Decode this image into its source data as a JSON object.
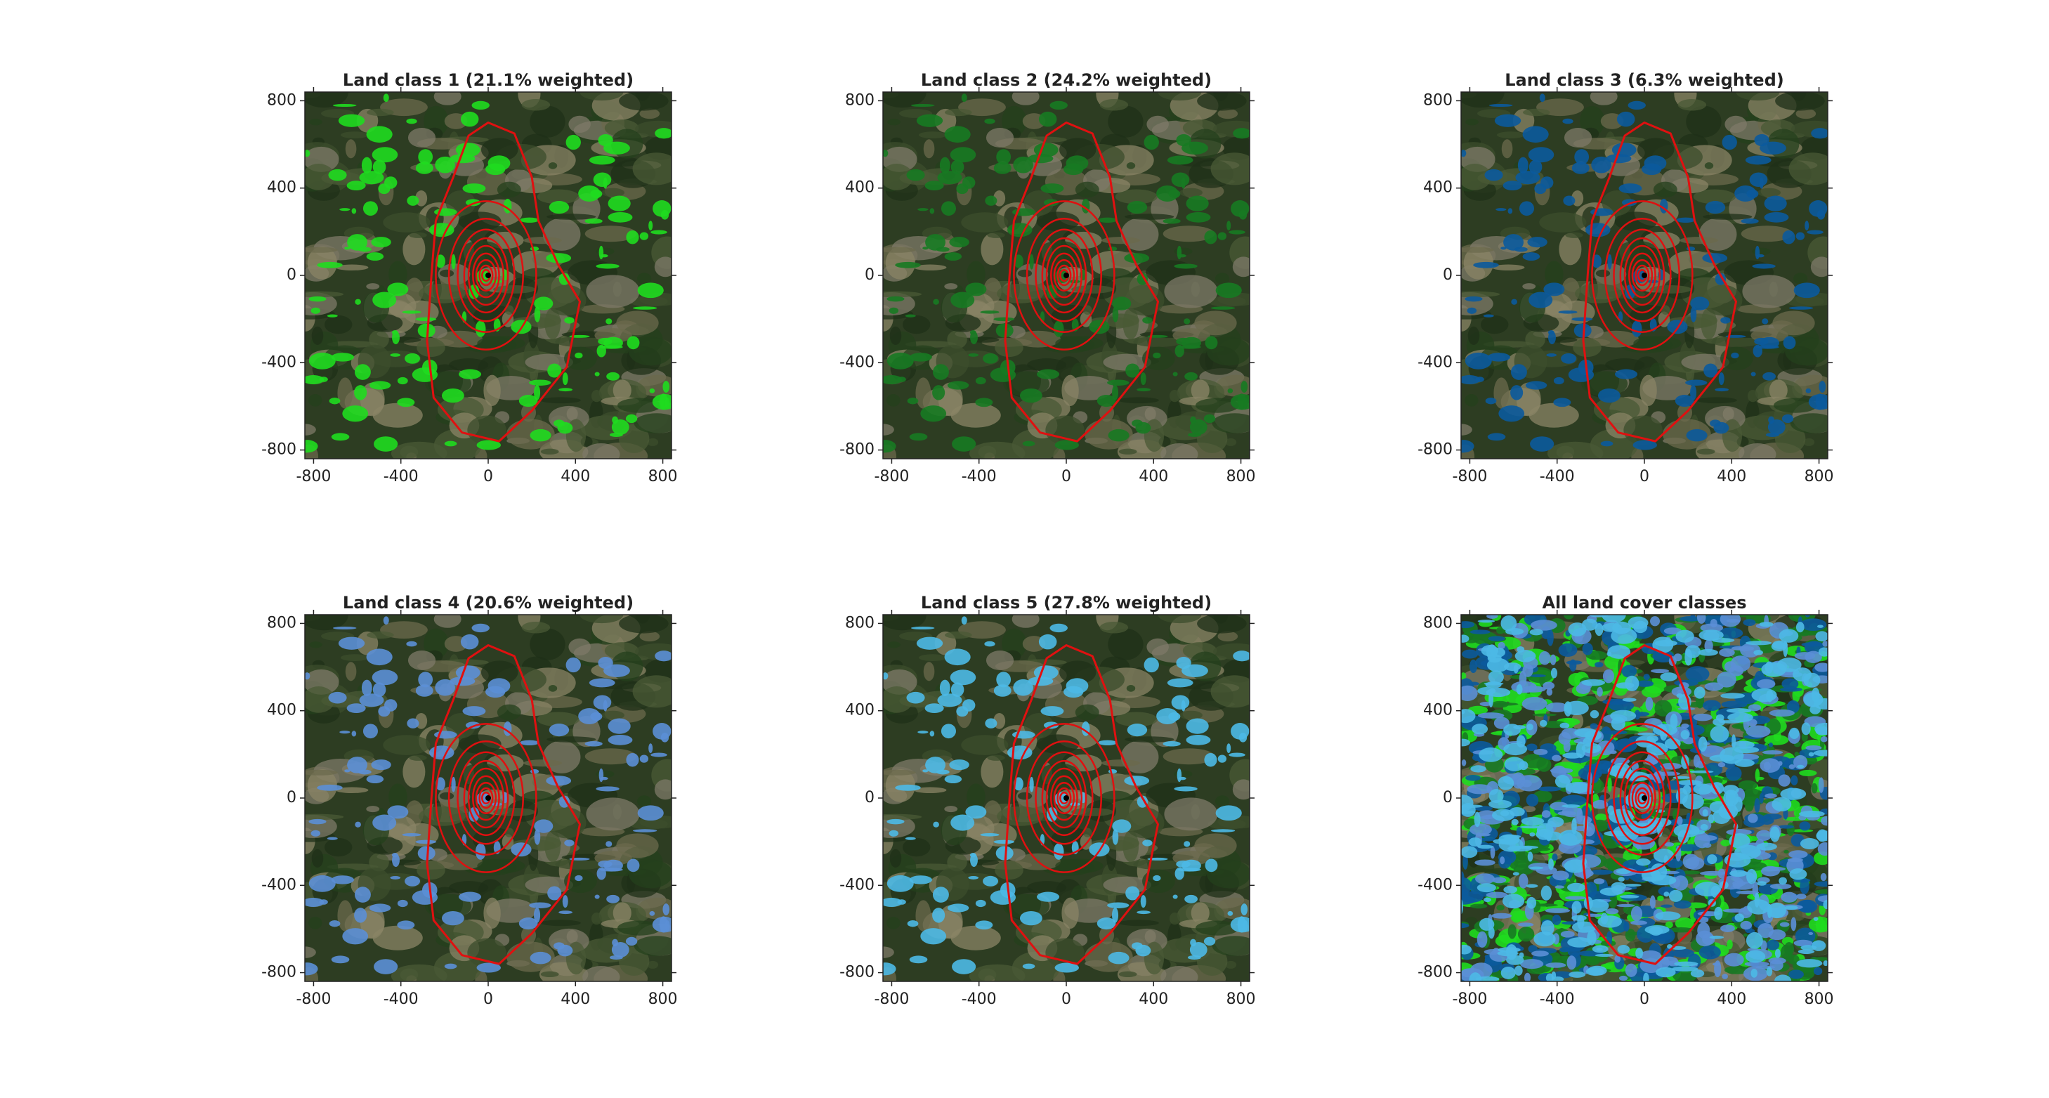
{
  "chart_data": [
    {
      "type": "image",
      "title": "Land class 1 (21.1% weighted)",
      "color": "#1fdc1f",
      "xlim": [
        -840,
        840
      ],
      "ylim": [
        -840,
        840
      ],
      "xticks": [
        -800,
        -400,
        0,
        400,
        800
      ],
      "yticks": [
        -800,
        -400,
        0,
        400,
        800
      ]
    },
    {
      "type": "image",
      "title": "Land class 2 (24.2% weighted)",
      "color": "#177a22",
      "xlim": [
        -840,
        840
      ],
      "ylim": [
        -840,
        840
      ],
      "xticks": [
        -800,
        -400,
        0,
        400,
        800
      ],
      "yticks": [
        -800,
        -400,
        0,
        400,
        800
      ]
    },
    {
      "type": "image",
      "title": "Land class 3 (6.3% weighted)",
      "color": "#0b5a9c",
      "xlim": [
        -840,
        840
      ],
      "ylim": [
        -840,
        840
      ],
      "xticks": [
        -800,
        -400,
        0,
        400,
        800
      ],
      "yticks": [
        -800,
        -400,
        0,
        400,
        800
      ]
    },
    {
      "type": "image",
      "title": "Land class 4 (20.6% weighted)",
      "color": "#5b8fd6",
      "xlim": [
        -840,
        840
      ],
      "ylim": [
        -840,
        840
      ],
      "xticks": [
        -800,
        -400,
        0,
        400,
        800
      ],
      "yticks": [
        -800,
        -400,
        0,
        400,
        800
      ]
    },
    {
      "type": "image",
      "title": "Land class 5 (27.8% weighted)",
      "color": "#4cb9e6",
      "xlim": [
        -840,
        840
      ],
      "ylim": [
        -840,
        840
      ],
      "xticks": [
        -800,
        -400,
        0,
        400,
        800
      ],
      "yticks": [
        -800,
        -400,
        0,
        400,
        800
      ]
    },
    {
      "type": "image",
      "title": "All land cover classes",
      "xlim": [
        -840,
        840
      ],
      "ylim": [
        -840,
        840
      ],
      "xticks": [
        -800,
        -400,
        0,
        400,
        800
      ],
      "yticks": [
        -800,
        -400,
        0,
        400,
        800
      ]
    }
  ]
}
